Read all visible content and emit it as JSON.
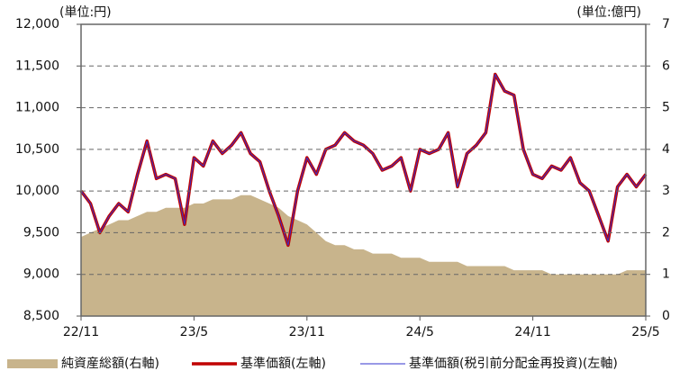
{
  "chart_data": {
    "type": "line",
    "left_unit": "(単位:円)",
    "right_unit": "(単位:億円)",
    "categories": [
      "22/11",
      null,
      null,
      null,
      null,
      null,
      null,
      null,
      null,
      null,
      null,
      null,
      "23/5",
      null,
      null,
      null,
      null,
      null,
      null,
      null,
      null,
      null,
      null,
      null,
      "23/11",
      null,
      null,
      null,
      null,
      null,
      null,
      null,
      null,
      null,
      null,
      null,
      "24/5",
      null,
      null,
      null,
      null,
      null,
      null,
      null,
      null,
      null,
      null,
      null,
      "24/11",
      null,
      null,
      null,
      null,
      null,
      null,
      null,
      null,
      null,
      null,
      null,
      "25/5"
    ],
    "ylim": [
      8500,
      12000
    ],
    "yticks": [
      {
        "value": 8500,
        "label": "8,500"
      },
      {
        "value": 9000,
        "label": "9,000"
      },
      {
        "value": 9500,
        "label": "9,500"
      },
      {
        "value": 10000,
        "label": "10,000"
      },
      {
        "value": 10500,
        "label": "10,500"
      },
      {
        "value": 11000,
        "label": "11,000"
      },
      {
        "value": 11500,
        "label": "11,500"
      },
      {
        "value": 12000,
        "label": "12,000"
      }
    ],
    "y2lim": [
      0,
      7
    ],
    "y2ticks": [
      0,
      1,
      2,
      3,
      4,
      5,
      6,
      7
    ],
    "grid": true,
    "series": [
      {
        "name": "純資産総額(右軸)",
        "type": "area",
        "axis": "y2",
        "color": "#c8b48c",
        "values": [
          1.9,
          2.0,
          2.1,
          2.2,
          2.3,
          2.3,
          2.4,
          2.5,
          2.5,
          2.6,
          2.6,
          2.6,
          2.7,
          2.7,
          2.8,
          2.8,
          2.8,
          2.9,
          2.9,
          2.8,
          2.7,
          2.6,
          2.4,
          2.3,
          2.2,
          2.0,
          1.8,
          1.7,
          1.7,
          1.6,
          1.6,
          1.5,
          1.5,
          1.5,
          1.4,
          1.4,
          1.4,
          1.3,
          1.3,
          1.3,
          1.3,
          1.2,
          1.2,
          1.2,
          1.2,
          1.2,
          1.1,
          1.1,
          1.1,
          1.1,
          1.0,
          1.0,
          1.0,
          1.0,
          1.0,
          1.0,
          1.0,
          1.0,
          1.1,
          1.1,
          1.1
        ]
      },
      {
        "name": "基準価額(左軸)",
        "type": "line",
        "color": "#c00000",
        "linewidth": 3.5,
        "values": [
          10000,
          9850,
          9500,
          9700,
          9850,
          9750,
          10200,
          10600,
          10150,
          10200,
          10150,
          9600,
          10400,
          10300,
          10600,
          10450,
          10550,
          10700,
          10450,
          10350,
          10000,
          9700,
          9350,
          10000,
          10400,
          10200,
          10500,
          10550,
          10700,
          10600,
          10550,
          10450,
          10250,
          10300,
          10400,
          10000,
          10500,
          10450,
          10500,
          10700,
          10050,
          10450,
          10550,
          10700,
          11400,
          11200,
          11150,
          10500,
          10200,
          10150,
          10300,
          10250,
          10400,
          10100,
          10000,
          9700,
          9400,
          10050,
          10200,
          10050,
          10200
        ]
      },
      {
        "name": "基準価額(税引前分配金再投資)(左軸)",
        "type": "line",
        "color": "#3333cc",
        "linewidth": 1,
        "values": [
          10000,
          9850,
          9500,
          9700,
          9850,
          9750,
          10200,
          10600,
          10150,
          10200,
          10150,
          9600,
          10400,
          10300,
          10600,
          10450,
          10550,
          10700,
          10450,
          10350,
          10000,
          9700,
          9350,
          10000,
          10400,
          10200,
          10500,
          10550,
          10700,
          10600,
          10550,
          10450,
          10250,
          10300,
          10400,
          10000,
          10500,
          10450,
          10500,
          10700,
          10050,
          10450,
          10550,
          10700,
          11400,
          11200,
          11150,
          10500,
          10200,
          10150,
          10300,
          10250,
          10400,
          10100,
          10000,
          9700,
          9400,
          10050,
          10200,
          10050,
          10200
        ]
      }
    ]
  }
}
